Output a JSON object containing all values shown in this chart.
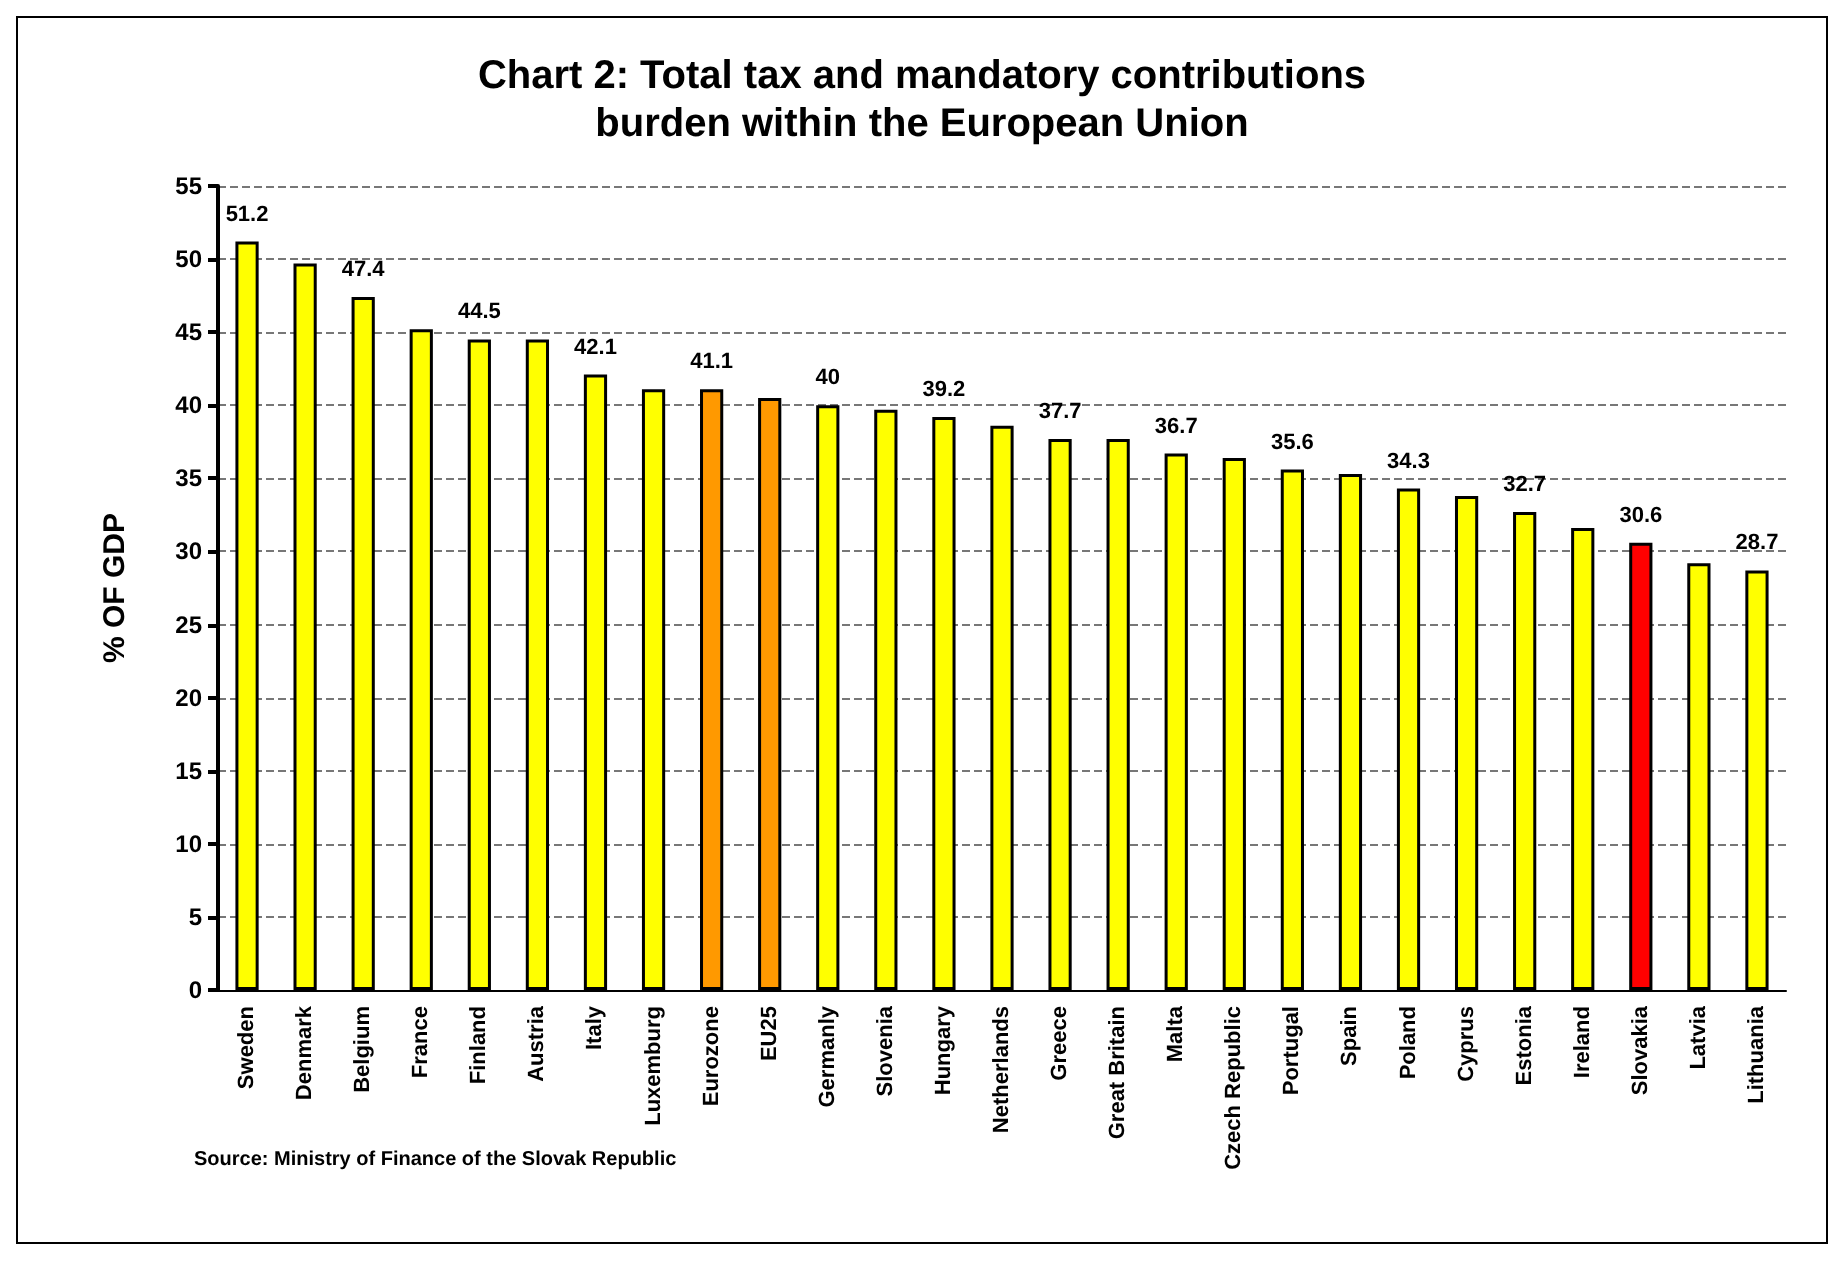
{
  "chart_data": {
    "type": "bar",
    "title": "Chart 2: Total tax and mandatory contributions\nburden within the European Union",
    "ylabel": "% OF GDP",
    "categories": [
      "Sweden",
      "Denmark",
      "Belgium",
      "France",
      "Finland",
      "Austria",
      "Italy",
      "Luxemburg",
      "Eurozone",
      "EU25",
      "Germanly",
      "Slovenia",
      "Hungary",
      "Netherlands",
      "Greece",
      "Great Britain",
      "Malta",
      "Czech Republic",
      "Portugal",
      "Spain",
      "Poland",
      "Cyprus",
      "Estonia",
      "Ireland",
      "Slovakia",
      "Latvia",
      "Lithuania"
    ],
    "values": [
      51.2,
      49.7,
      47.4,
      45.2,
      44.5,
      44.5,
      42.1,
      41.1,
      41.1,
      40.5,
      40,
      39.7,
      39.2,
      38.6,
      37.7,
      37.7,
      36.7,
      36.4,
      35.6,
      35.3,
      34.3,
      33.8,
      32.7,
      31.6,
      30.6,
      29.2,
      28.7
    ],
    "value_labels": [
      "51.2",
      null,
      "47.4",
      null,
      "44.5",
      null,
      "42.1",
      null,
      "41.1",
      null,
      "40",
      null,
      "39.2",
      null,
      "37.7",
      null,
      "36.7",
      null,
      "35.6",
      null,
      "34.3",
      null,
      "32.7",
      null,
      "30.6",
      null,
      "28.7"
    ],
    "colors": [
      "#ffff00",
      "#ffff00",
      "#ffff00",
      "#ffff00",
      "#ffff00",
      "#ffff00",
      "#ffff00",
      "#ffff00",
      "#ff9900",
      "#ff9900",
      "#ffff00",
      "#ffff00",
      "#ffff00",
      "#ffff00",
      "#ffff00",
      "#ffff00",
      "#ffff00",
      "#ffff00",
      "#ffff00",
      "#ffff00",
      "#ffff00",
      "#ffff00",
      "#ffff00",
      "#ffff00",
      "#ff0000",
      "#ffff00",
      "#ffff00"
    ],
    "ylim": [
      0,
      55
    ],
    "yticks": [
      0,
      5,
      10,
      15,
      20,
      25,
      30,
      35,
      40,
      45,
      50,
      55
    ],
    "grid": "y",
    "annotations": [
      "Source: Ministry of Finance of the Slovak Republic"
    ]
  }
}
